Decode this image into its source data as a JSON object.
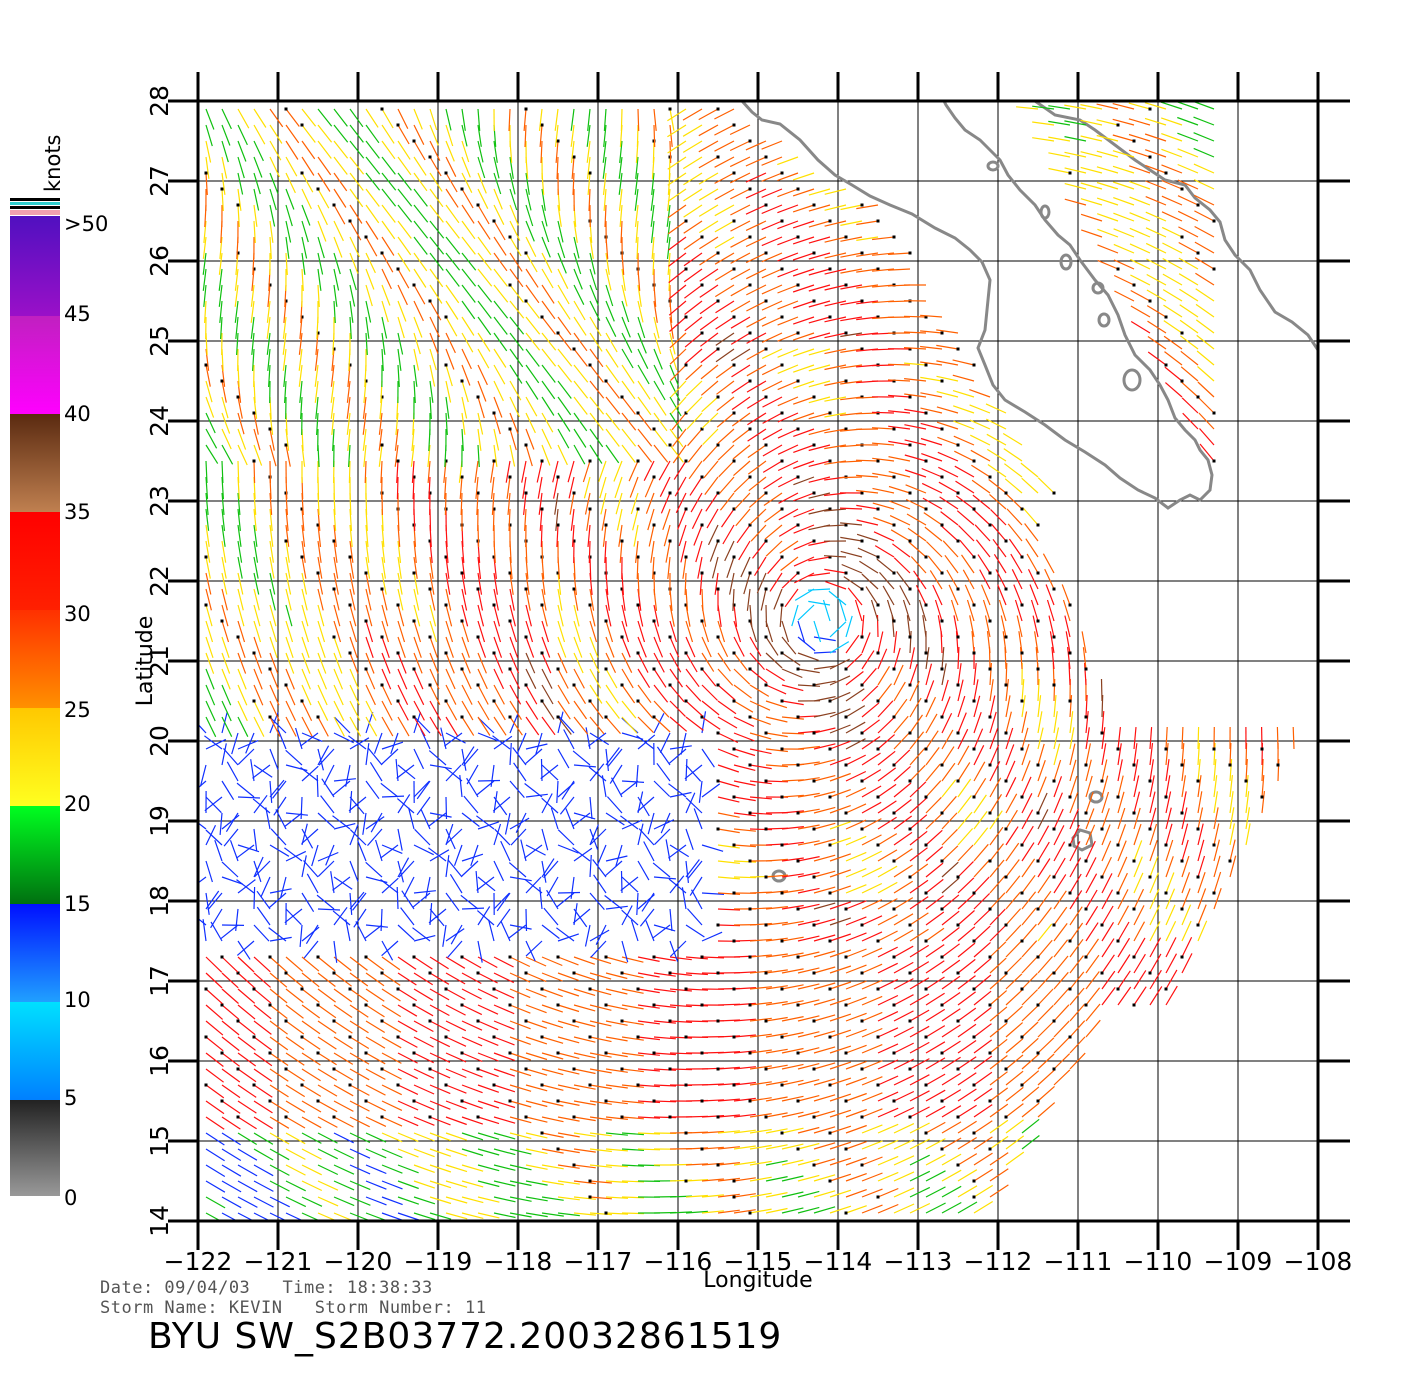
{
  "map": {
    "xlabel": "Longitude",
    "ylabel": "Latitude",
    "lon_range": [
      -122,
      -108
    ],
    "lat_range": [
      14,
      28
    ],
    "lon_ticks": [
      "-122",
      "-121",
      "-120",
      "-119",
      "-118",
      "-117",
      "-116",
      "-115",
      "-114",
      "-113",
      "-112",
      "-111",
      "-110",
      "-109",
      "-108"
    ],
    "lat_ticks": [
      "14",
      "15",
      "16",
      "17",
      "18",
      "19",
      "20",
      "21",
      "22",
      "23",
      "24",
      "25",
      "26",
      "27",
      "28"
    ],
    "grid": true,
    "layers": [
      "coastline-baja-california",
      "islands",
      "wind-barbs"
    ],
    "wind_center": {
      "lon": -114.2,
      "lat": 21.5
    }
  },
  "legend": {
    "title": "knots",
    "labels": [
      ">50",
      "45",
      "40",
      "35",
      "30",
      "25",
      "20",
      "15",
      "10",
      "5",
      "0"
    ],
    "colors": {
      "0-5": "#555555",
      "5-10": "#00c8ff",
      "10-15": "#1030ff",
      "15-20": "#10c010",
      "20-25": "#ffe000",
      "25-30": "#ff6000",
      "30-35": "#ff1010",
      "35-40": "#8a4020",
      "40-45": "#ff00ff",
      "45-50": "#6000c0"
    }
  },
  "info": {
    "date_line": "Date: 09/04/03   Time: 18:38:33",
    "storm_line": "Storm Name: KEVIN   Storm Number: 11",
    "product": "BYU SW_S2B03772.20032861519"
  }
}
